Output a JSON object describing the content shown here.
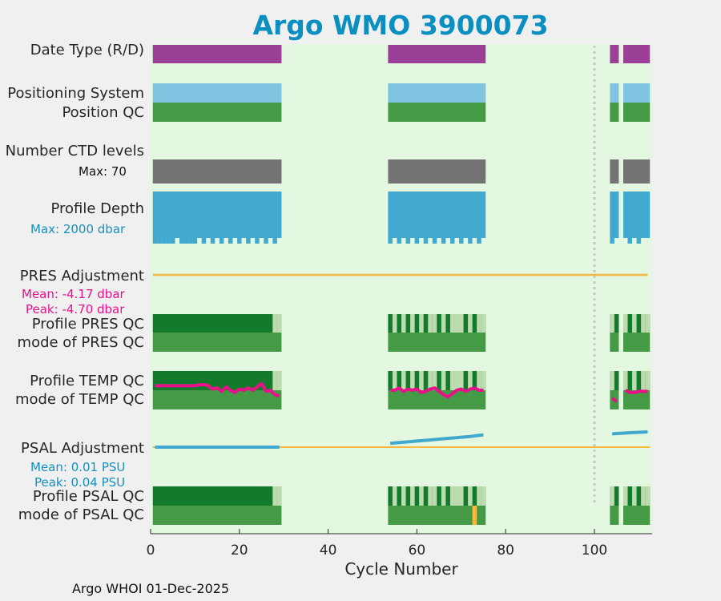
{
  "title": "Argo WMO 3900073",
  "footer": "Argo WHOI 01-Dec-2025",
  "rows": {
    "date_type": "Date Type (R/D)",
    "positioning_system": "Positioning System",
    "position_qc": "Position QC",
    "number_ctd_levels": "Number CTD levels",
    "max_levels": "Max: 70",
    "profile_depth": "Profile Depth",
    "max_depth": "Max: 2000 dbar",
    "pres_adjustment": "PRES Adjustment",
    "pres_mean": "Mean: -4.17 dbar",
    "pres_peak": "Peak: -4.70 dbar",
    "profile_pres_qc": "Profile PRES QC",
    "mode_pres_qc": "mode of PRES QC",
    "profile_temp_qc": "Profile TEMP QC",
    "mode_temp_qc": "mode of TEMP QC",
    "psal_adjustment": "PSAL Adjustment",
    "psal_mean": "Mean: 0.01 PSU",
    "psal_peak": "Peak: 0.04 PSU",
    "profile_psal_qc": "Profile PSAL QC",
    "mode_psal_qc": "mode of PSAL QC"
  },
  "colors": {
    "title": "#0a8fc0",
    "plot_bg": "#e4f7e0",
    "date_type": "#9b3f97",
    "positioning": "#7fc4e0",
    "position_qc": "#459a45",
    "ctd_levels": "#737373",
    "depth": "#41a9cf",
    "adjustment_line": "#f6b840",
    "profile_qc_dark": "#137a2b",
    "profile_qc_light": "#bcdcb0",
    "mode_qc": "#459a45",
    "temp_line": "#e8118a",
    "psal_line": "#41a9cf",
    "pres_stats": "#e8118a",
    "psal_stats": "#1590c0",
    "marker": "#c8c8c8",
    "psal_flag": "#f6b840"
  },
  "chart_data": {
    "type": "timeline",
    "xlabel": "Cycle Number",
    "xlim": [
      0,
      113
    ],
    "xticks": [
      0,
      20,
      40,
      60,
      80,
      100
    ],
    "marker_cycle": 100,
    "cycle_segments": [
      [
        0.5,
        29.5
      ],
      [
        53.5,
        75.5
      ],
      [
        103.5,
        105.5
      ],
      [
        106.5,
        112.5
      ]
    ],
    "max_ctd_levels": 70,
    "max_depth_dbar": 2000,
    "pres_adjustment": {
      "mean": -4.17,
      "peak": -4.7,
      "unit": "dbar"
    },
    "psal_adjustment": {
      "mean": 0.01,
      "peak": 0.04,
      "unit": "PSU"
    },
    "short_depth_cycles": [
      1,
      2,
      3,
      4,
      5,
      7,
      8,
      9,
      10,
      12,
      14,
      16,
      18,
      20,
      22,
      24,
      26,
      28,
      54,
      56,
      58,
      60,
      62,
      64,
      66,
      68,
      70,
      72,
      74,
      104,
      108,
      110
    ],
    "profile_qc_light_cycles": [
      28,
      29,
      55,
      57,
      59,
      61,
      63,
      64,
      66,
      68,
      69,
      70,
      72,
      74,
      75,
      104,
      107,
      109,
      111,
      112
    ],
    "psal_flag_cycles": [
      73
    ],
    "temp_series": {
      "x": [
        1,
        2,
        3,
        4,
        5,
        6,
        7,
        8,
        9,
        10,
        11,
        12,
        13,
        14,
        15,
        16,
        17,
        18,
        19,
        20,
        21,
        22,
        23,
        24,
        25,
        26,
        27,
        28,
        29,
        54,
        55,
        56,
        57,
        58,
        59,
        60,
        61,
        62,
        63,
        64,
        65,
        66,
        67,
        68,
        69,
        70,
        71,
        72,
        73,
        74,
        75,
        104,
        105,
        107,
        108,
        109,
        110,
        111,
        112
      ],
      "y": [
        0.2,
        0.2,
        0.2,
        0.2,
        0.2,
        0.2,
        0.2,
        0.2,
        0.2,
        0.2,
        0.25,
        0.25,
        0.2,
        0.05,
        0.1,
        -0.05,
        0.15,
        0.0,
        -0.1,
        0.05,
        0.0,
        0.1,
        0.0,
        0.15,
        0.3,
        -0.05,
        0.0,
        -0.2,
        -0.25,
        0.0,
        0.0,
        0.1,
        -0.05,
        0.05,
        0.0,
        0.05,
        -0.1,
        -0.05,
        0.05,
        0.1,
        -0.05,
        -0.2,
        -0.3,
        -0.15,
        0.0,
        0.05,
        -0.05,
        0.05,
        0.1,
        0.0,
        0.0,
        -0.35,
        -0.5,
        0.0,
        -0.1,
        -0.1,
        -0.05,
        -0.05,
        -0.05
      ]
    },
    "psal_series": {
      "x": [
        1,
        5,
        10,
        15,
        20,
        25,
        29,
        54,
        56,
        58,
        60,
        62,
        64,
        66,
        68,
        70,
        72,
        74,
        75,
        104,
        107,
        108,
        110,
        112
      ],
      "y": [
        0.0,
        0.0,
        0.0,
        0.0,
        0.0,
        0.0,
        0.0,
        0.01,
        0.012,
        0.014,
        0.016,
        0.018,
        0.02,
        0.022,
        0.024,
        0.026,
        0.028,
        0.031,
        0.032,
        0.035,
        0.037,
        0.038,
        0.039,
        0.04
      ]
    }
  }
}
